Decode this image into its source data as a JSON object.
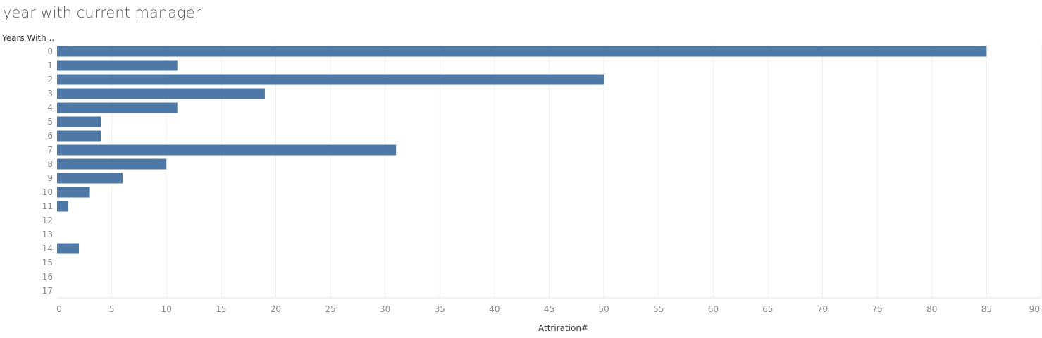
{
  "title": "year with current manager",
  "chart_data": {
    "type": "bar",
    "orientation": "horizontal",
    "title": "year with current manager",
    "ylabel": "Years With ..",
    "xlabel": "Attriration#",
    "categories": [
      "0",
      "1",
      "2",
      "3",
      "4",
      "5",
      "6",
      "7",
      "8",
      "9",
      "10",
      "11",
      "12",
      "13",
      "14",
      "15",
      "16",
      "17"
    ],
    "values": [
      85,
      11,
      50,
      19,
      11,
      4,
      4,
      31,
      10,
      6,
      3,
      1,
      null,
      null,
      2,
      null,
      null,
      null
    ],
    "xlim": [
      0,
      90
    ],
    "xticks": [
      0,
      5,
      10,
      15,
      20,
      25,
      30,
      35,
      40,
      45,
      50,
      55,
      60,
      65,
      70,
      75,
      80,
      85,
      90
    ],
    "grid": true,
    "bar_color": "#4e79a7",
    "grid_color": "#f0f0f0"
  }
}
